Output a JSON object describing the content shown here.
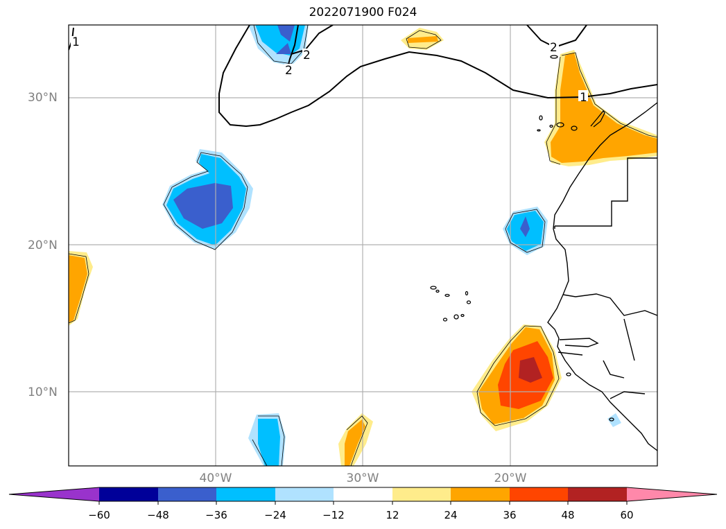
{
  "title": "2022071900 F024",
  "lat_labels": [
    "30°N",
    "20°N",
    "10°N"
  ],
  "lon_labels": [
    "40°W",
    "30°W",
    "20°W"
  ],
  "colorbar": {
    "ticks": [
      "−60",
      "−48",
      "−36",
      "−24",
      "−12",
      "12",
      "24",
      "36",
      "48",
      "60"
    ],
    "colors": [
      "#9933cc",
      "#000099",
      "#3a5fcd",
      "#00bfff",
      "#b0e2ff",
      "#ffffff",
      "#ffec8b",
      "#ffa500",
      "#ff4500",
      "#b22222",
      "#ff88aa"
    ]
  },
  "contour_labels": [
    "1",
    "2",
    "2",
    "2",
    "1"
  ]
}
